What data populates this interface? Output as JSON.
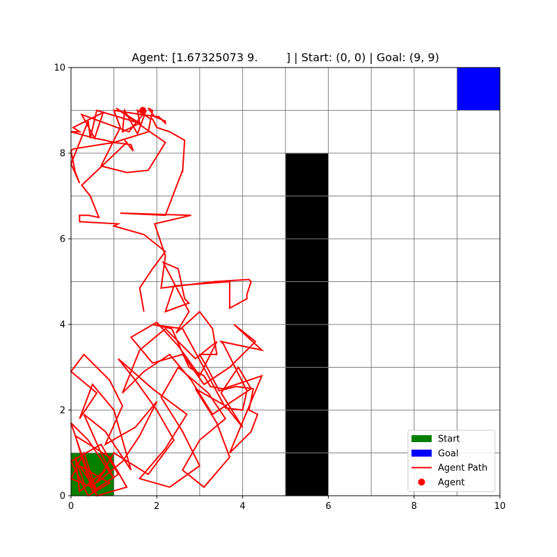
{
  "chart_data": {
    "type": "line",
    "title": "Agent: [1.67325073 9.        ] | Start: (0, 0) | Goal: (9, 9)",
    "xlabel": "",
    "ylabel": "",
    "xlim": [
      0,
      10
    ],
    "ylim": [
      0,
      10
    ],
    "grid": true,
    "x_ticks": [
      0,
      2,
      4,
      6,
      8,
      10
    ],
    "y_ticks": [
      0,
      2,
      4,
      6,
      8,
      10
    ],
    "legend_position": "bottom-right",
    "colors": {
      "start": "#008000",
      "goal": "#0000ff",
      "obstacle": "#000000",
      "path": "#ff0000",
      "grid": "#808080"
    },
    "cells": [
      {
        "name": "Start",
        "x": 0,
        "y": 0,
        "w": 1,
        "h": 1,
        "color": "#008000"
      },
      {
        "name": "Goal",
        "x": 9,
        "y": 9,
        "w": 1,
        "h": 1,
        "color": "#0000ff"
      },
      {
        "name": "Obstacle",
        "x": 5,
        "y": 0,
        "w": 1,
        "h": 8,
        "color": "#000000"
      }
    ],
    "series": [
      {
        "name": "Agent Path",
        "x": [
          0.3,
          0.1,
          0.2,
          0.8,
          0.5,
          0.0,
          0.3,
          0.6,
          0.2,
          0.9,
          0.4,
          0.0,
          0.7,
          1.1,
          0.5,
          0.1,
          0.9,
          1.3,
          0.6,
          0.2,
          0.0,
          0.4,
          1.0,
          0.7,
          0.3,
          0.8,
          1.4,
          1.0,
          0.5,
          0.2,
          0.6,
          0.0,
          0.3,
          0.9,
          1.2,
          0.8,
          1.5,
          2.0,
          1.6,
          1.2,
          0.6,
          1.0,
          1.8,
          2.4,
          2.0,
          1.5,
          1.1,
          1.9,
          2.7,
          2.2,
          1.6,
          2.3,
          3.0,
          2.6,
          2.1,
          2.5,
          3.2,
          3.6,
          3.0,
          2.6,
          3.1,
          3.7,
          3.4,
          2.9,
          3.6,
          4.0,
          3.5,
          3.9,
          4.2,
          3.3,
          2.8,
          2.3,
          1.7,
          1.2,
          1.6,
          2.2,
          2.9,
          3.4,
          3.0,
          2.5,
          2.0,
          1.4,
          1.9,
          2.6,
          3.1,
          3.7,
          4.3,
          3.8,
          4.45,
          3.5,
          3.55,
          4.1,
          4.0,
          3.6,
          3.2,
          2.6,
          1.9,
          2.35,
          2.75,
          3.1,
          3.25,
          3.55,
          4.45,
          3.7,
          3.7,
          4.2,
          4.35,
          4.15,
          4.25,
          3.85,
          3.45,
          3.2,
          3.0,
          3.4,
          3.3,
          3.0,
          2.45,
          2.75,
          2.15,
          2.5,
          2.65,
          2.75,
          2.2,
          2.4,
          3.7,
          3.7,
          4.1,
          4.1,
          4.2,
          4.15,
          3.35,
          2.1,
          2.2,
          1.95,
          2.8,
          1.15,
          2.2,
          2.6,
          2.6,
          2.65,
          2.3,
          2.0,
          1.9,
          1.85,
          1.55,
          1.6,
          1.05,
          2.2,
          1.8,
          1.3,
          0.7,
          1.15,
          1.0,
          1.65,
          2.05,
          2.15,
          2.2,
          2.2,
          1.95,
          1.8,
          1.9,
          1.8,
          1.0,
          0.05,
          0.0,
          0.1,
          0.2,
          0.0,
          0.4,
          0.45,
          0.6,
          0.6,
          1.6,
          1.2,
          1.25,
          1.55,
          1.75,
          1.35,
          0.25,
          0.55,
          0.75,
          0.05,
          0.2,
          0.0,
          0.55,
          0.8,
          1.0,
          1.4,
          1.45,
          1.25,
          1.3,
          0.25,
          0.45,
          0.65,
          0.4,
          0.2,
          0.2,
          1.1,
          1.0,
          1.7,
          2.2,
          1.9,
          1.6,
          1.7
        ],
        "y": [
          0.3,
          0.9,
          0.1,
          0.6,
          0.2,
          0.4,
          1.0,
          0.1,
          0.7,
          0.3,
          0.0,
          0.8,
          1.2,
          0.5,
          0.1,
          1.4,
          0.9,
          0.2,
          0.0,
          1.1,
          1.7,
          1.3,
          0.4,
          1.0,
          1.9,
          1.5,
          0.6,
          2.0,
          2.6,
          1.8,
          2.4,
          2.9,
          3.3,
          2.7,
          2.1,
          1.2,
          1.6,
          2.2,
          1.4,
          0.8,
          0.3,
          1.0,
          0.5,
          1.3,
          2.0,
          2.7,
          3.2,
          2.5,
          1.9,
          1.1,
          0.4,
          0.2,
          0.7,
          1.5,
          2.3,
          3.0,
          2.4,
          1.8,
          1.3,
          0.6,
          0.2,
          0.9,
          1.7,
          2.5,
          2.1,
          1.6,
          2.4,
          3.0,
          2.5,
          1.9,
          2.7,
          3.3,
          2.9,
          2.4,
          3.4,
          3.9,
          3.2,
          3.6,
          2.8,
          3.5,
          4.05,
          3.7,
          3.1,
          3.3,
          2.6,
          3.0,
          3.6,
          4.0,
          3.4,
          3.6,
          3.55,
          2.45,
          2.0,
          2.05,
          2.8,
          3.9,
          4.0,
          3.9,
          3.0,
          2.8,
          2.55,
          2.5,
          2.8,
          1.0,
          1.0,
          1.5,
          1.9,
          2.0,
          2.5,
          2.55,
          2.45,
          2.95,
          3.3,
          3.3,
          3.9,
          4.3,
          3.8,
          4.3,
          5.45,
          5.3,
          4.6,
          4.5,
          4.3,
          4.9,
          5.0,
          4.38,
          4.6,
          4.7,
          5.0,
          5.05,
          5.0,
          4.85,
          5.6,
          6.35,
          6.55,
          6.6,
          6.55,
          7.6,
          7.55,
          8.3,
          8.5,
          8.6,
          8.8,
          8.8,
          9.0,
          8.7,
          9.05,
          8.25,
          7.6,
          7.55,
          7.7,
          8.6,
          9.0,
          8.9,
          8.85,
          8.75,
          8.7,
          8.75,
          8.85,
          9.05,
          9.0,
          8.5,
          8.25,
          8.1,
          8.05,
          7.55,
          7.3,
          7.75,
          8.75,
          8.35,
          9.0,
          9.0,
          8.7,
          8.5,
          9.0,
          8.45,
          9.0,
          8.5,
          8.9,
          8.35,
          8.95,
          8.6,
          8.5,
          8.5,
          8.35,
          8.3,
          8.25,
          8.2,
          8.05,
          8.3,
          8.25,
          7.25,
          7.0,
          6.5,
          6.55,
          6.55,
          6.4,
          6.35,
          6.3,
          6.1,
          5.7,
          5.3,
          4.85,
          4.3
        ],
        "color": "#ff0000"
      }
    ],
    "agent": {
      "name": "Agent",
      "x": 1.67325073,
      "y": 9.0,
      "color": "#ff0000"
    },
    "legend": [
      {
        "label": "Start",
        "kind": "patch",
        "color": "#008000"
      },
      {
        "label": "Goal",
        "kind": "patch",
        "color": "#0000ff"
      },
      {
        "label": "Agent Path",
        "kind": "line",
        "color": "#ff0000"
      },
      {
        "label": "Agent",
        "kind": "marker",
        "color": "#ff0000"
      }
    ]
  }
}
